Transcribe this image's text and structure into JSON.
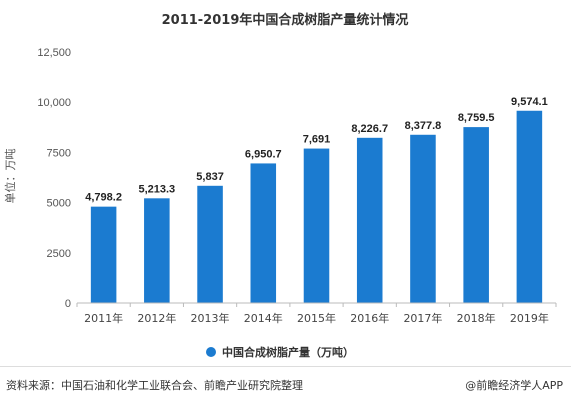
{
  "chart_data": {
    "type": "bar",
    "title": "2011-2019年中国合成树脂产量统计情况",
    "ylabel": "单位：万吨",
    "xlabel": "",
    "categories": [
      "2011年",
      "2012年",
      "2013年",
      "2014年",
      "2015年",
      "2016年",
      "2017年",
      "2018年",
      "2019年"
    ],
    "values": [
      4798.2,
      5213.3,
      5837,
      6950.7,
      7691,
      8226.7,
      8377.8,
      8759.5,
      9574.1
    ],
    "value_labels": [
      "4,798.2",
      "5,213.3",
      "5,837",
      "6,950.7",
      "7,691",
      "8,226.7",
      "8,377.8",
      "8,759.5",
      "9,574.1"
    ],
    "yticks": [
      0,
      2500,
      5000,
      7500,
      10000,
      12500
    ],
    "ytick_labels": [
      "0",
      "2500",
      "5000",
      "7500",
      "10,000",
      "12,500"
    ],
    "ylim": [
      0,
      12500
    ],
    "grid": false,
    "legend": {
      "position": "bottom",
      "entries": [
        {
          "name": "中国合成树脂产量（万吨）",
          "color": "#1b7bd0"
        }
      ]
    },
    "bar_color": "#1b7bd0"
  },
  "footer": {
    "source": "资料来源：中国石油和化学工业联合会、前瞻产业研究院整理",
    "credit": "@前瞻经济学人APP"
  }
}
